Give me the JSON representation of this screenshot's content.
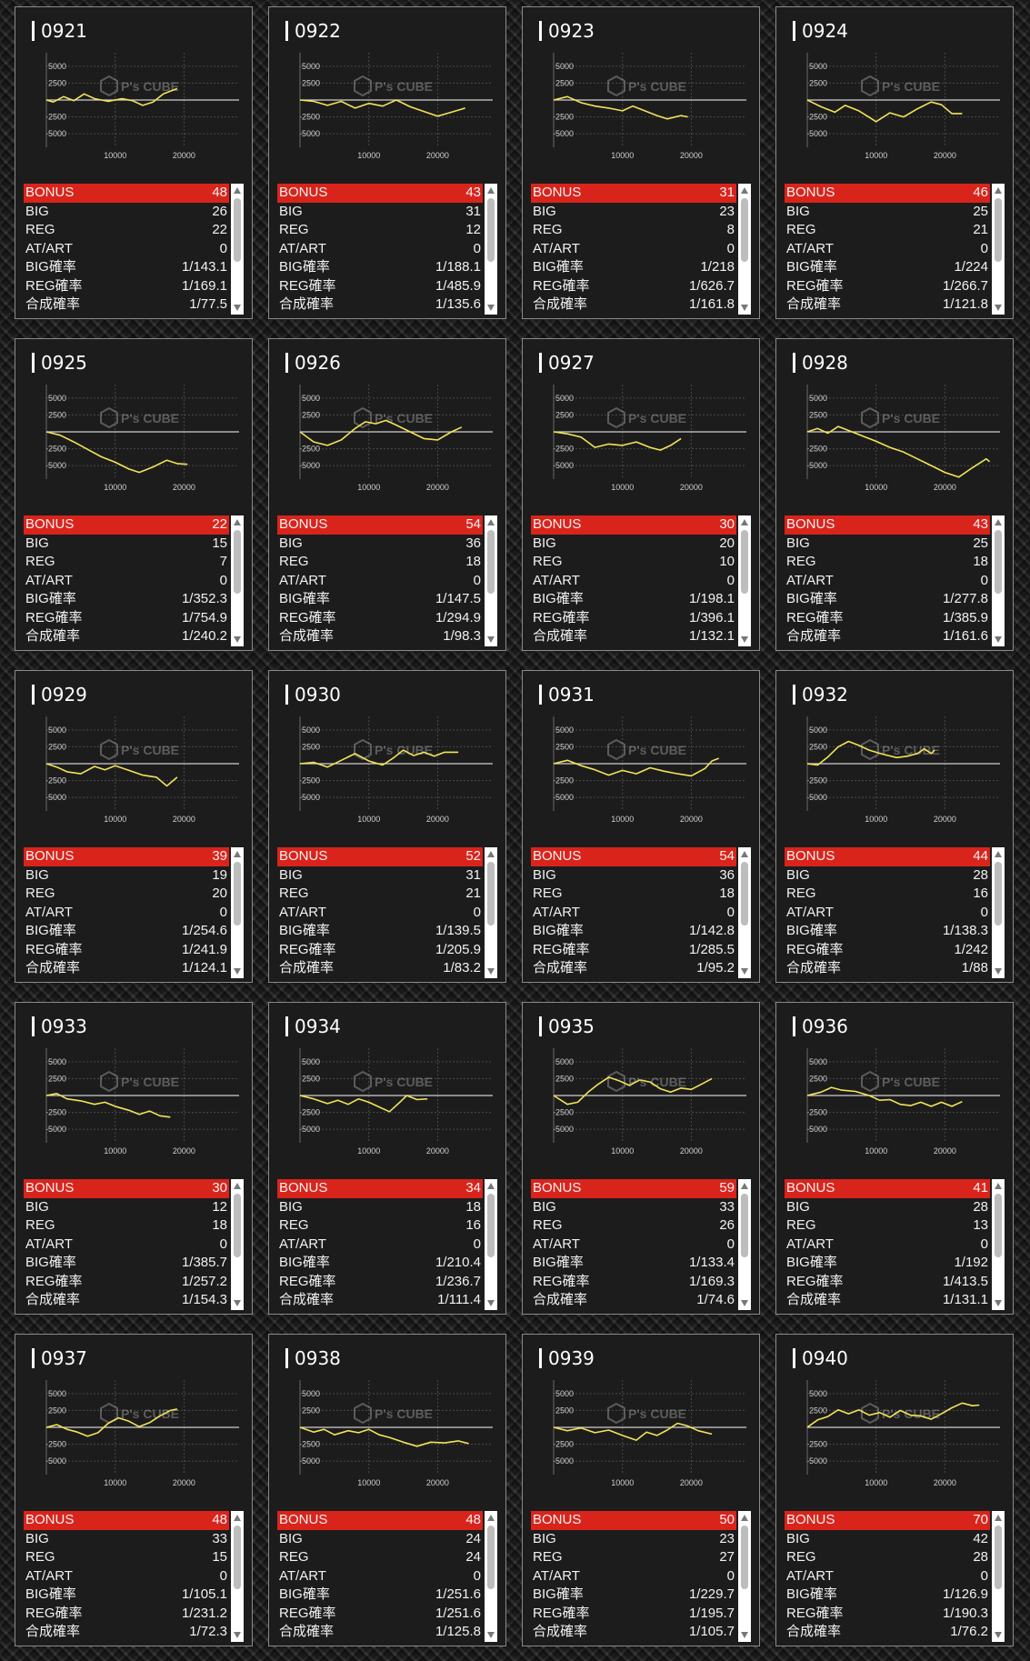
{
  "colors": {
    "bonus_bar": "#d9241c",
    "graph_line": "#f2e35a",
    "zero_line": "#cfcfcf",
    "card_bg": "#1c1c1c"
  },
  "graph_axis": {
    "y_ticks": [
      "5000",
      "2500",
      "-2500",
      "-5000"
    ],
    "x_ticks": [
      "10000",
      "20000"
    ],
    "x_range": [
      0,
      28000
    ],
    "y_range": [
      -7000,
      7000
    ]
  },
  "watermark": "P's CUBE",
  "labels": {
    "bonus": "BONUS",
    "big": "BIG",
    "reg": "REG",
    "atart": "AT/ART",
    "big_rate": "BIG確率",
    "reg_rate": "REG確率",
    "total_rate": "合成確率"
  },
  "machines": [
    {
      "id": "0921",
      "bonus": "48",
      "big": "26",
      "reg": "22",
      "atart": "0",
      "big_rate": "1/143.1",
      "reg_rate": "1/169.1",
      "total_rate": "1/77.5",
      "graph": [
        [
          0,
          0
        ],
        [
          1000,
          -300
        ],
        [
          2500,
          500
        ],
        [
          4000,
          -100
        ],
        [
          5500,
          900
        ],
        [
          7000,
          200
        ],
        [
          9000,
          -200
        ],
        [
          11000,
          200
        ],
        [
          12500,
          -100
        ],
        [
          14000,
          -800
        ],
        [
          15500,
          -300
        ],
        [
          17000,
          900
        ],
        [
          19000,
          1700
        ]
      ]
    },
    {
      "id": "0922",
      "bonus": "43",
      "big": "31",
      "reg": "12",
      "atart": "0",
      "big_rate": "1/188.1",
      "reg_rate": "1/485.9",
      "total_rate": "1/135.6",
      "graph": [
        [
          0,
          0
        ],
        [
          2000,
          -200
        ],
        [
          4000,
          -800
        ],
        [
          6000,
          -200
        ],
        [
          8000,
          -1200
        ],
        [
          10000,
          -500
        ],
        [
          12000,
          -900
        ],
        [
          14000,
          0
        ],
        [
          16000,
          -1000
        ],
        [
          18000,
          -1700
        ],
        [
          20000,
          -2400
        ],
        [
          22000,
          -1800
        ],
        [
          24000,
          -1200
        ]
      ]
    },
    {
      "id": "0923",
      "bonus": "31",
      "big": "23",
      "reg": "8",
      "atart": "0",
      "big_rate": "1/218",
      "reg_rate": "1/626.7",
      "total_rate": "1/161.8",
      "graph": [
        [
          0,
          0
        ],
        [
          2000,
          500
        ],
        [
          4000,
          -400
        ],
        [
          6000,
          -900
        ],
        [
          8000,
          -1200
        ],
        [
          10000,
          -1600
        ],
        [
          11500,
          -900
        ],
        [
          13000,
          -1500
        ],
        [
          15000,
          -2300
        ],
        [
          16500,
          -2800
        ],
        [
          18500,
          -2300
        ],
        [
          19500,
          -2500
        ]
      ]
    },
    {
      "id": "0924",
      "bonus": "46",
      "big": "25",
      "reg": "21",
      "atart": "0",
      "big_rate": "1/224",
      "reg_rate": "1/266.7",
      "total_rate": "1/121.8",
      "graph": [
        [
          0,
          0
        ],
        [
          2000,
          -1000
        ],
        [
          4000,
          -1800
        ],
        [
          5500,
          -800
        ],
        [
          7500,
          -1600
        ],
        [
          10000,
          -3200
        ],
        [
          12000,
          -1900
        ],
        [
          14000,
          -2500
        ],
        [
          16000,
          -1300
        ],
        [
          18000,
          -300
        ],
        [
          19500,
          -700
        ],
        [
          21000,
          -2000
        ],
        [
          22500,
          -2000
        ]
      ]
    },
    {
      "id": "0925",
      "bonus": "22",
      "big": "15",
      "reg": "7",
      "atart": "0",
      "big_rate": "1/352.3",
      "reg_rate": "1/754.9",
      "total_rate": "1/240.2",
      "graph": [
        [
          0,
          0
        ],
        [
          2000,
          -500
        ],
        [
          4000,
          -1500
        ],
        [
          6000,
          -2600
        ],
        [
          8000,
          -3700
        ],
        [
          10000,
          -4500
        ],
        [
          12000,
          -5500
        ],
        [
          13500,
          -6000
        ],
        [
          15500,
          -5200
        ],
        [
          17500,
          -4200
        ],
        [
          19000,
          -4700
        ],
        [
          20500,
          -4800
        ]
      ]
    },
    {
      "id": "0926",
      "bonus": "54",
      "big": "36",
      "reg": "18",
      "atart": "0",
      "big_rate": "1/147.5",
      "reg_rate": "1/294.9",
      "total_rate": "1/98.3",
      "graph": [
        [
          0,
          0
        ],
        [
          2000,
          -1500
        ],
        [
          4000,
          -2000
        ],
        [
          6000,
          -1200
        ],
        [
          8000,
          500
        ],
        [
          9500,
          1500
        ],
        [
          11000,
          1200
        ],
        [
          12500,
          1700
        ],
        [
          14000,
          1000
        ],
        [
          16000,
          0
        ],
        [
          18000,
          -1000
        ],
        [
          20000,
          -1200
        ],
        [
          22000,
          0
        ],
        [
          23500,
          700
        ]
      ]
    },
    {
      "id": "0927",
      "bonus": "30",
      "big": "20",
      "reg": "10",
      "atart": "0",
      "big_rate": "1/198.1",
      "reg_rate": "1/396.1",
      "total_rate": "1/132.1",
      "graph": [
        [
          0,
          0
        ],
        [
          2000,
          -300
        ],
        [
          4000,
          -800
        ],
        [
          6000,
          -2300
        ],
        [
          8000,
          -1800
        ],
        [
          10000,
          -2000
        ],
        [
          12000,
          -1500
        ],
        [
          14000,
          -2300
        ],
        [
          15500,
          -2700
        ],
        [
          17000,
          -2000
        ],
        [
          18500,
          -1000
        ]
      ]
    },
    {
      "id": "0928",
      "bonus": "43",
      "big": "25",
      "reg": "18",
      "atart": "0",
      "big_rate": "1/277.8",
      "reg_rate": "1/385.9",
      "total_rate": "1/161.6",
      "graph": [
        [
          0,
          0
        ],
        [
          1500,
          500
        ],
        [
          3000,
          -200
        ],
        [
          4500,
          800
        ],
        [
          6000,
          200
        ],
        [
          8000,
          -600
        ],
        [
          10000,
          -1400
        ],
        [
          12000,
          -2300
        ],
        [
          14000,
          -3000
        ],
        [
          16000,
          -4000
        ],
        [
          18000,
          -5000
        ],
        [
          20000,
          -6000
        ],
        [
          22000,
          -6700
        ],
        [
          24000,
          -5300
        ],
        [
          26000,
          -4000
        ],
        [
          26500,
          -4400
        ]
      ]
    },
    {
      "id": "0929",
      "bonus": "39",
      "big": "19",
      "reg": "20",
      "atart": "0",
      "big_rate": "1/254.6",
      "reg_rate": "1/241.9",
      "total_rate": "1/124.1",
      "graph": [
        [
          0,
          0
        ],
        [
          1500,
          -500
        ],
        [
          3000,
          -1200
        ],
        [
          5000,
          -1500
        ],
        [
          7000,
          -400
        ],
        [
          8500,
          -900
        ],
        [
          10000,
          -300
        ],
        [
          12000,
          -1000
        ],
        [
          14000,
          -1700
        ],
        [
          16000,
          -2000
        ],
        [
          17500,
          -3300
        ],
        [
          19000,
          -2000
        ]
      ]
    },
    {
      "id": "0930",
      "bonus": "52",
      "big": "31",
      "reg": "21",
      "atart": "0",
      "big_rate": "1/139.5",
      "reg_rate": "1/205.9",
      "total_rate": "1/83.2",
      "graph": [
        [
          0,
          0
        ],
        [
          2000,
          200
        ],
        [
          4000,
          -500
        ],
        [
          6000,
          500
        ],
        [
          8000,
          1500
        ],
        [
          10000,
          400
        ],
        [
          12000,
          -200
        ],
        [
          13500,
          800
        ],
        [
          15000,
          2000
        ],
        [
          16500,
          1200
        ],
        [
          18000,
          1700
        ],
        [
          19500,
          1100
        ],
        [
          21000,
          1700
        ],
        [
          23000,
          1700
        ]
      ]
    },
    {
      "id": "0931",
      "bonus": "54",
      "big": "36",
      "reg": "18",
      "atart": "0",
      "big_rate": "1/142.8",
      "reg_rate": "1/285.5",
      "total_rate": "1/95.2",
      "graph": [
        [
          0,
          0
        ],
        [
          2000,
          500
        ],
        [
          4000,
          -300
        ],
        [
          6000,
          -900
        ],
        [
          8000,
          -1700
        ],
        [
          10000,
          -1000
        ],
        [
          12000,
          -1500
        ],
        [
          14000,
          -600
        ],
        [
          16000,
          -1100
        ],
        [
          18000,
          -1500
        ],
        [
          20000,
          -1800
        ],
        [
          22000,
          -700
        ],
        [
          23000,
          400
        ],
        [
          24000,
          800
        ]
      ]
    },
    {
      "id": "0932",
      "bonus": "44",
      "big": "28",
      "reg": "16",
      "atart": "0",
      "big_rate": "1/138.3",
      "reg_rate": "1/242",
      "total_rate": "1/88",
      "graph": [
        [
          0,
          0
        ],
        [
          1500,
          -200
        ],
        [
          3000,
          1000
        ],
        [
          4500,
          2500
        ],
        [
          6000,
          3300
        ],
        [
          7500,
          2700
        ],
        [
          9000,
          2000
        ],
        [
          11000,
          1400
        ],
        [
          13000,
          900
        ],
        [
          14500,
          1100
        ],
        [
          16000,
          1500
        ],
        [
          17000,
          2200
        ],
        [
          18000,
          1500
        ],
        [
          18500,
          2000
        ]
      ]
    },
    {
      "id": "0933",
      "bonus": "30",
      "big": "12",
      "reg": "18",
      "atart": "0",
      "big_rate": "1/385.7",
      "reg_rate": "1/257.2",
      "total_rate": "1/154.3",
      "graph": [
        [
          0,
          0
        ],
        [
          1500,
          300
        ],
        [
          3000,
          -500
        ],
        [
          5000,
          -800
        ],
        [
          7000,
          -1300
        ],
        [
          8500,
          -1000
        ],
        [
          10000,
          -1600
        ],
        [
          12000,
          -2200
        ],
        [
          13500,
          -2800
        ],
        [
          15000,
          -2300
        ],
        [
          16500,
          -3000
        ],
        [
          18000,
          -3200
        ]
      ]
    },
    {
      "id": "0934",
      "bonus": "34",
      "big": "18",
      "reg": "16",
      "atart": "0",
      "big_rate": "1/210.4",
      "reg_rate": "1/236.7",
      "total_rate": "1/111.4",
      "graph": [
        [
          0,
          0
        ],
        [
          2000,
          -500
        ],
        [
          4000,
          -1200
        ],
        [
          5500,
          -700
        ],
        [
          7000,
          -1300
        ],
        [
          8500,
          -500
        ],
        [
          10000,
          -1000
        ],
        [
          11500,
          -1700
        ],
        [
          13000,
          -2400
        ],
        [
          14500,
          -1000
        ],
        [
          15500,
          0
        ],
        [
          17000,
          -600
        ],
        [
          18500,
          -500
        ]
      ]
    },
    {
      "id": "0935",
      "bonus": "59",
      "big": "33",
      "reg": "26",
      "atart": "0",
      "big_rate": "1/133.4",
      "reg_rate": "1/169.3",
      "total_rate": "1/74.6",
      "graph": [
        [
          0,
          0
        ],
        [
          2000,
          -1300
        ],
        [
          3500,
          -1000
        ],
        [
          5000,
          500
        ],
        [
          6500,
          1700
        ],
        [
          8000,
          2700
        ],
        [
          9500,
          2200
        ],
        [
          11000,
          1500
        ],
        [
          12500,
          2300
        ],
        [
          14000,
          2000
        ],
        [
          15500,
          1000
        ],
        [
          17000,
          500
        ],
        [
          18500,
          1100
        ],
        [
          20000,
          900
        ],
        [
          21500,
          1700
        ],
        [
          23000,
          2500
        ]
      ]
    },
    {
      "id": "0936",
      "bonus": "41",
      "big": "28",
      "reg": "13",
      "atart": "0",
      "big_rate": "1/192",
      "reg_rate": "1/413.5",
      "total_rate": "1/131.1",
      "graph": [
        [
          0,
          0
        ],
        [
          2000,
          500
        ],
        [
          3500,
          1200
        ],
        [
          5000,
          800
        ],
        [
          7000,
          600
        ],
        [
          9000,
          0
        ],
        [
          10500,
          -700
        ],
        [
          12000,
          -600
        ],
        [
          13500,
          -1300
        ],
        [
          15000,
          -1500
        ],
        [
          16500,
          -1000
        ],
        [
          18000,
          -1600
        ],
        [
          19500,
          -1000
        ],
        [
          21000,
          -1600
        ],
        [
          22500,
          -900
        ]
      ]
    },
    {
      "id": "0937",
      "bonus": "48",
      "big": "33",
      "reg": "15",
      "atart": "0",
      "big_rate": "1/105.1",
      "reg_rate": "1/231.2",
      "total_rate": "1/72.3",
      "graph": [
        [
          0,
          0
        ],
        [
          1500,
          400
        ],
        [
          3000,
          -300
        ],
        [
          4500,
          -700
        ],
        [
          6000,
          -1300
        ],
        [
          7500,
          -800
        ],
        [
          9000,
          600
        ],
        [
          10500,
          1400
        ],
        [
          12000,
          900
        ],
        [
          13500,
          100
        ],
        [
          15000,
          700
        ],
        [
          16500,
          1700
        ],
        [
          18000,
          2500
        ],
        [
          19000,
          2700
        ]
      ]
    },
    {
      "id": "0938",
      "bonus": "48",
      "big": "24",
      "reg": "24",
      "atart": "0",
      "big_rate": "1/251.6",
      "reg_rate": "1/251.6",
      "total_rate": "1/125.8",
      "graph": [
        [
          0,
          0
        ],
        [
          2000,
          -700
        ],
        [
          3500,
          -300
        ],
        [
          5000,
          -1100
        ],
        [
          7000,
          -500
        ],
        [
          8500,
          -800
        ],
        [
          10000,
          -300
        ],
        [
          11500,
          -1100
        ],
        [
          13000,
          -1500
        ],
        [
          15000,
          -2200
        ],
        [
          17000,
          -2800
        ],
        [
          19000,
          -2200
        ],
        [
          21000,
          -2300
        ],
        [
          23000,
          -2000
        ],
        [
          24500,
          -2400
        ]
      ]
    },
    {
      "id": "0939",
      "bonus": "50",
      "big": "23",
      "reg": "27",
      "atart": "0",
      "big_rate": "1/229.7",
      "reg_rate": "1/195.7",
      "total_rate": "1/105.7",
      "graph": [
        [
          0,
          0
        ],
        [
          2000,
          -500
        ],
        [
          4000,
          -100
        ],
        [
          6000,
          -800
        ],
        [
          8000,
          -400
        ],
        [
          10000,
          -1200
        ],
        [
          12000,
          -1900
        ],
        [
          13500,
          -700
        ],
        [
          15000,
          -1200
        ],
        [
          16500,
          -400
        ],
        [
          18000,
          600
        ],
        [
          19500,
          200
        ],
        [
          21000,
          -500
        ],
        [
          23000,
          -1000
        ]
      ]
    },
    {
      "id": "0940",
      "bonus": "70",
      "big": "42",
      "reg": "28",
      "atart": "0",
      "big_rate": "1/126.9",
      "reg_rate": "1/190.3",
      "total_rate": "1/76.2",
      "graph": [
        [
          0,
          0
        ],
        [
          1500,
          1100
        ],
        [
          3000,
          1600
        ],
        [
          4500,
          2600
        ],
        [
          6000,
          2000
        ],
        [
          7500,
          2600
        ],
        [
          9000,
          1800
        ],
        [
          10500,
          2200
        ],
        [
          12000,
          1500
        ],
        [
          13500,
          2500
        ],
        [
          15000,
          1800
        ],
        [
          16500,
          1700
        ],
        [
          18000,
          1200
        ],
        [
          19500,
          2000
        ],
        [
          21000,
          2900
        ],
        [
          22500,
          3600
        ],
        [
          24000,
          3200
        ],
        [
          25000,
          3300
        ]
      ]
    }
  ]
}
